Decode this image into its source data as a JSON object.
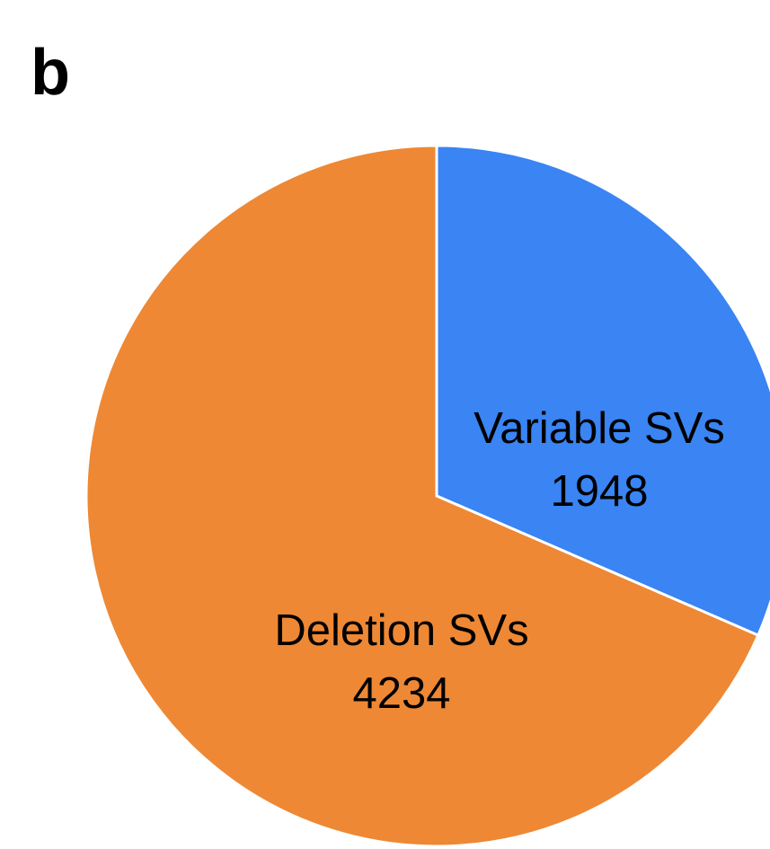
{
  "chart_data": {
    "type": "pie",
    "panel_label": "b",
    "categories": [
      "Variable SVs",
      "Deletion SVs"
    ],
    "values": [
      1948,
      4234
    ],
    "colors": [
      "#3a84f3",
      "#ee8834"
    ],
    "start_angle": 0,
    "direction": "clockwise"
  }
}
